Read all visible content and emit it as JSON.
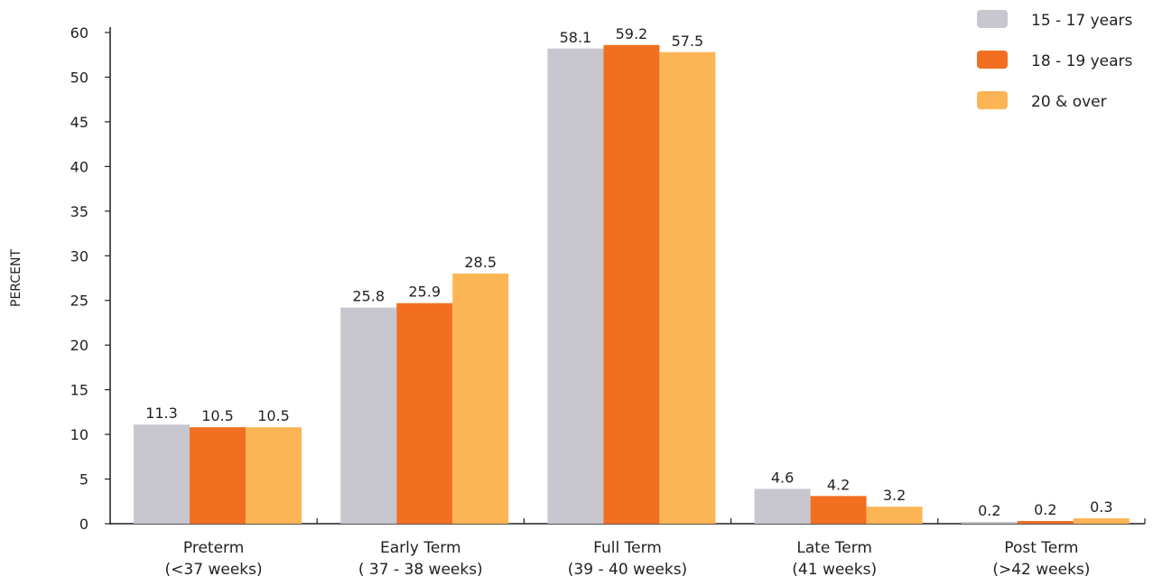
{
  "chart_data": {
    "type": "bar",
    "ylabel": "PERCENT",
    "ylim": [
      0,
      60
    ],
    "ytick_labels": [
      "0",
      "5",
      "10",
      "15",
      "20",
      "25",
      "30",
      "35",
      "40",
      "45",
      "50",
      "60"
    ],
    "categories": [
      [
        "Preterm",
        "(<37 weeks)"
      ],
      [
        "Early Term",
        "( 37 - 38 weeks)"
      ],
      [
        "Full Term",
        "(39 - 40 weeks)"
      ],
      [
        "Late Term",
        "(41 weeks)"
      ],
      [
        "Post Term",
        "(>42 weeks)"
      ]
    ],
    "series": [
      {
        "name": "15 - 17 years",
        "color": "#c8c7cf",
        "values": [
          11.3,
          25.8,
          58.1,
          4.6,
          0.2
        ],
        "labels": [
          "11.3",
          "25.8",
          "58.1",
          "4.6",
          "0.2"
        ],
        "bar_values": [
          11.1,
          24.2,
          53.2,
          3.9,
          0.2
        ]
      },
      {
        "name": "18 - 19 years",
        "color": "#f26f22",
        "values": [
          10.5,
          25.9,
          59.2,
          4.2,
          0.2
        ],
        "labels": [
          "10.5",
          "25.9",
          "59.2",
          "4.2",
          "0.2"
        ],
        "bar_values": [
          10.8,
          24.7,
          53.6,
          3.1,
          0.3
        ]
      },
      {
        "name": "20 & over",
        "color": "#fbb554",
        "values": [
          10.5,
          28.5,
          57.5,
          3.2,
          0.3
        ],
        "labels": [
          "10.5",
          "28.5",
          "57.5",
          "3.2",
          "0.3"
        ],
        "bar_values": [
          10.8,
          28.0,
          52.8,
          1.9,
          0.6
        ]
      }
    ],
    "grid": false,
    "legend_position": "top-right"
  }
}
